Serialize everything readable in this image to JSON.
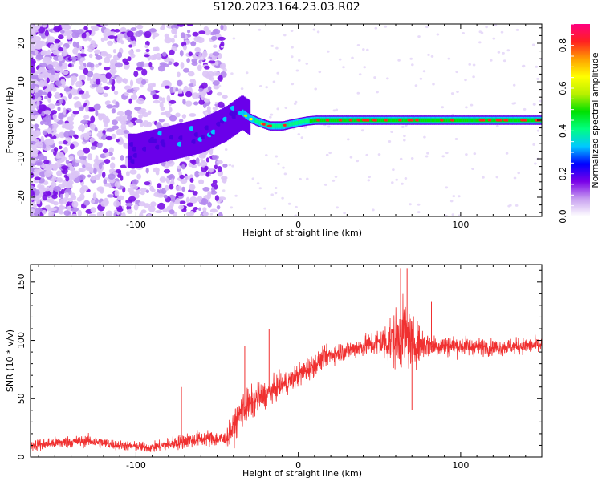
{
  "title": "S120.2023.164.23.03.R02",
  "chart_data": [
    {
      "type": "heatmap",
      "xlabel": "Height of straight line (km)",
      "ylabel": "Frequency (Hz)",
      "xlim": [
        -165,
        150
      ],
      "ylim": [
        -25,
        25
      ],
      "xticks": [
        -100,
        0,
        100
      ],
      "yticks": [
        -20,
        -10,
        0,
        10,
        20
      ],
      "colorbar": {
        "label": "Normalized spectral amplitude",
        "range": [
          0,
          0.9
        ],
        "ticks": [
          0.0,
          0.2,
          0.4,
          0.6,
          0.8
        ],
        "colors": [
          "#ffffff",
          "#c8a0f0",
          "#7a00e8",
          "#0000ff",
          "#00c8ff",
          "#00ff80",
          "#00e000",
          "#b8f000",
          "#ffff00",
          "#ffa000",
          "#ff2020",
          "#ff0080"
        ]
      },
      "ridge": {
        "x": [
          -100,
          -80,
          -60,
          -45,
          -35,
          -30,
          -25,
          -18,
          -10,
          -5,
          0,
          5,
          10,
          150
        ],
        "frequency": [
          -8,
          -6,
          -4,
          -1,
          2,
          0.5,
          -0.5,
          -1.5,
          -1.5,
          -1.0,
          -0.6,
          -0.2,
          0,
          0
        ],
        "amplitude": [
          0.35,
          0.45,
          0.45,
          0.55,
          0.55,
          0.6,
          0.75,
          0.8,
          0.8,
          0.8,
          0.8,
          0.8,
          0.85,
          0.85
        ]
      }
    },
    {
      "type": "line",
      "xlabel": "Height of straight line (km)",
      "ylabel": "SNR (10 * v/v)",
      "xlim": [
        -165,
        150
      ],
      "ylim": [
        0,
        165
      ],
      "xticks": [
        -100,
        0,
        100
      ],
      "yticks": [
        0,
        50,
        100,
        150
      ],
      "color": "#f03030",
      "envelope": {
        "x": [
          -165,
          -150,
          -130,
          -110,
          -90,
          -70,
          -55,
          -45,
          -40,
          -35,
          -25,
          -15,
          -5,
          5,
          20,
          40,
          50,
          60,
          65,
          70,
          80,
          100,
          120,
          150
        ],
        "y": [
          10,
          12,
          14,
          10,
          8,
          14,
          16,
          15,
          25,
          40,
          50,
          58,
          65,
          75,
          88,
          95,
          98,
          100,
          105,
          98,
          96,
          95,
          94,
          96
        ],
        "noise": [
          6,
          6,
          6,
          5,
          5,
          8,
          8,
          8,
          15,
          18,
          15,
          12,
          12,
          12,
          10,
          10,
          15,
          30,
          35,
          25,
          12,
          10,
          8,
          8
        ]
      },
      "spikes": [
        {
          "x": -18,
          "y": 110
        },
        {
          "x": -33,
          "y": 95
        },
        {
          "x": -72,
          "y": 60
        },
        {
          "x": 63,
          "y": 162
        },
        {
          "x": 67,
          "y": 162
        },
        {
          "x": 70,
          "y": 40
        },
        {
          "x": 82,
          "y": 133
        }
      ]
    }
  ]
}
